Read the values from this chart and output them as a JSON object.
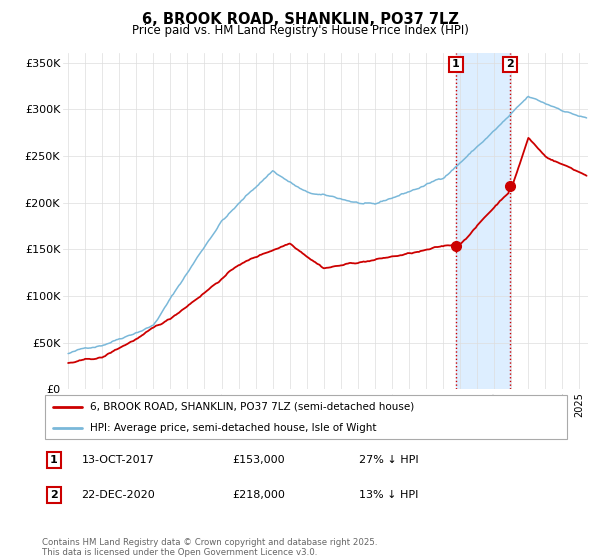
{
  "title": "6, BROOK ROAD, SHANKLIN, PO37 7LZ",
  "subtitle": "Price paid vs. HM Land Registry's House Price Index (HPI)",
  "ylim": [
    0,
    360000
  ],
  "yticks": [
    0,
    50000,
    100000,
    150000,
    200000,
    250000,
    300000,
    350000
  ],
  "ytick_labels": [
    "£0",
    "£50K",
    "£100K",
    "£150K",
    "£200K",
    "£250K",
    "£300K",
    "£350K"
  ],
  "hpi_color": "#7ab8d9",
  "price_color": "#cc0000",
  "legend_price": "6, BROOK ROAD, SHANKLIN, PO37 7LZ (semi-detached house)",
  "legend_hpi": "HPI: Average price, semi-detached house, Isle of Wight",
  "footer": "Contains HM Land Registry data © Crown copyright and database right 2025.\nThis data is licensed under the Open Government Licence v3.0.",
  "bg_highlight_color": "#ddeeff",
  "vline_color": "#cc0000",
  "bg_color": "#f0f0f0",
  "rows": [
    [
      "1",
      "13-OCT-2017",
      "£153,000",
      "27% ↓ HPI"
    ],
    [
      "2",
      "22-DEC-2020",
      "£218,000",
      "13% ↓ HPI"
    ]
  ]
}
